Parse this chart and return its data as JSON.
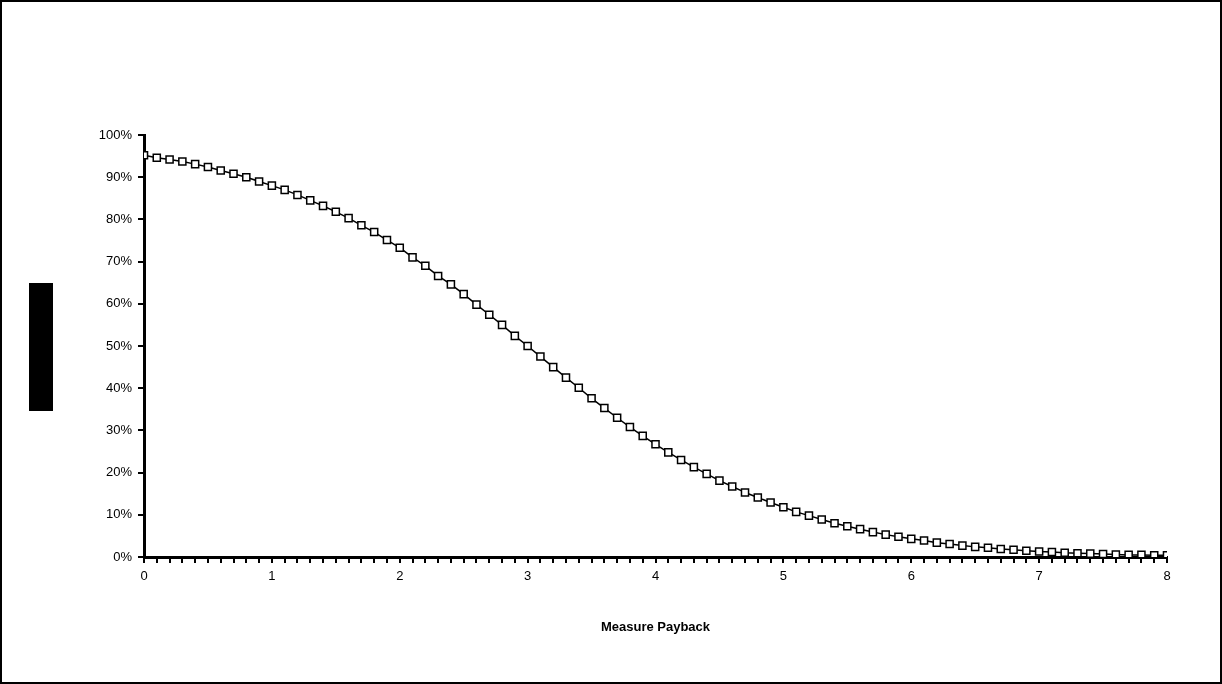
{
  "chart_data": {
    "type": "line",
    "xlabel": "Measure Payback",
    "marker": "square",
    "line_style": "solid",
    "grid": false,
    "legend": false,
    "xlim": [
      0,
      8
    ],
    "xticks": [
      0,
      {
        "value": 0.1,
        "label": null
      },
      {
        "value": 0.2,
        "label": null
      },
      {
        "value": 0.3,
        "label": null
      },
      {
        "value": 0.4,
        "label": null
      },
      {
        "value": 0.5,
        "label": null
      },
      {
        "value": 0.6,
        "label": null
      },
      {
        "value": 0.7,
        "label": null
      },
      {
        "value": 0.8,
        "label": null
      },
      {
        "value": 0.9,
        "label": null
      },
      1,
      {
        "value": 1.1,
        "label": null
      },
      {
        "value": 1.2,
        "label": null
      },
      {
        "value": 1.3,
        "label": null
      },
      {
        "value": 1.4,
        "label": null
      },
      {
        "value": 1.5,
        "label": null
      },
      {
        "value": 1.6,
        "label": null
      },
      {
        "value": 1.7,
        "label": null
      },
      {
        "value": 1.8,
        "label": null
      },
      {
        "value": 1.9,
        "label": null
      },
      2,
      {
        "value": 2.1,
        "label": null
      },
      {
        "value": 2.2,
        "label": null
      },
      {
        "value": 2.3,
        "label": null
      },
      {
        "value": 2.4,
        "label": null
      },
      {
        "value": 2.5,
        "label": null
      },
      {
        "value": 2.6,
        "label": null
      },
      {
        "value": 2.7,
        "label": null
      },
      {
        "value": 2.8,
        "label": null
      },
      {
        "value": 2.9,
        "label": null
      },
      3,
      {
        "value": 3.1,
        "label": null
      },
      {
        "value": 3.2,
        "label": null
      },
      {
        "value": 3.3,
        "label": null
      },
      {
        "value": 3.4,
        "label": null
      },
      {
        "value": 3.5,
        "label": null
      },
      {
        "value": 3.6,
        "label": null
      },
      {
        "value": 3.7,
        "label": null
      },
      {
        "value": 3.8,
        "label": null
      },
      {
        "value": 3.9,
        "label": null
      },
      4,
      {
        "value": 4.1,
        "label": null
      },
      {
        "value": 4.2,
        "label": null
      },
      {
        "value": 4.3,
        "label": null
      },
      {
        "value": 4.4,
        "label": null
      },
      {
        "value": 4.5,
        "label": null
      },
      {
        "value": 4.6,
        "label": null
      },
      {
        "value": 4.7,
        "label": null
      },
      {
        "value": 4.8,
        "label": null
      },
      {
        "value": 4.9,
        "label": null
      },
      5,
      {
        "value": 5.1,
        "label": null
      },
      {
        "value": 5.2,
        "label": null
      },
      {
        "value": 5.3,
        "label": null
      },
      {
        "value": 5.4,
        "label": null
      },
      {
        "value": 5.5,
        "label": null
      },
      {
        "value": 5.6,
        "label": null
      },
      {
        "value": 5.7,
        "label": null
      },
      {
        "value": 5.8,
        "label": null
      },
      {
        "value": 5.9,
        "label": null
      },
      6,
      {
        "value": 6.1,
        "label": null
      },
      {
        "value": 6.2,
        "label": null
      },
      {
        "value": 6.3,
        "label": null
      },
      {
        "value": 6.4,
        "label": null
      },
      {
        "value": 6.5,
        "label": null
      },
      {
        "value": 6.6,
        "label": null
      },
      {
        "value": 6.7,
        "label": null
      },
      {
        "value": 6.8,
        "label": null
      },
      {
        "value": 6.9,
        "label": null
      },
      7,
      {
        "value": 7.1,
        "label": null
      },
      {
        "value": 7.2,
        "label": null
      },
      {
        "value": 7.3,
        "label": null
      },
      {
        "value": 7.4,
        "label": null
      },
      {
        "value": 7.5,
        "label": null
      },
      {
        "value": 7.6,
        "label": null
      },
      {
        "value": 7.7,
        "label": null
      },
      {
        "value": 7.8,
        "label": null
      },
      {
        "value": 7.9,
        "label": null
      },
      8
    ],
    "ylim": [
      0,
      100
    ],
    "yticks": [
      {
        "value": 0,
        "label": "0%"
      },
      {
        "value": 10,
        "label": "10%"
      },
      {
        "value": 20,
        "label": "20%"
      },
      {
        "value": 30,
        "label": "30%"
      },
      {
        "value": 40,
        "label": "40%"
      },
      {
        "value": 50,
        "label": "50%"
      },
      {
        "value": 60,
        "label": "60%"
      },
      {
        "value": 70,
        "label": "70%"
      },
      {
        "value": 80,
        "label": "80%"
      },
      {
        "value": 90,
        "label": "90%"
      },
      {
        "value": 100,
        "label": "100%"
      }
    ],
    "x": [
      0,
      0.1,
      0.2,
      0.3,
      0.4,
      0.5,
      0.6,
      0.7,
      0.8,
      0.9,
      1,
      1.1,
      1.2,
      1.3,
      1.4,
      1.5,
      1.6,
      1.7,
      1.8,
      1.9,
      2,
      2.1,
      2.2,
      2.3,
      2.4,
      2.5,
      2.6,
      2.7,
      2.8,
      2.9,
      3,
      3.1,
      3.2,
      3.3,
      3.4,
      3.5,
      3.6,
      3.7,
      3.8,
      3.9,
      4,
      4.1,
      4.2,
      4.3,
      4.4,
      4.5,
      4.6,
      4.7,
      4.8,
      4.9,
      5,
      5.1,
      5.2,
      5.3,
      5.4,
      5.5,
      5.6,
      5.7,
      5.8,
      5.9,
      6,
      6.1,
      6.2,
      6.3,
      6.4,
      6.5,
      6.6,
      6.7,
      6.8,
      6.9,
      7,
      7.1,
      7.2,
      7.3,
      7.4,
      7.5,
      7.6,
      7.7,
      7.8,
      7.9,
      8
    ],
    "series": [
      {
        "color": "#000000",
        "values": [
          95.2,
          94.6,
          94.2,
          93.7,
          93.1,
          92.4,
          91.6,
          90.8,
          90.0,
          89.0,
          88.0,
          87.0,
          85.8,
          84.5,
          83.2,
          81.8,
          80.3,
          78.6,
          77.0,
          75.1,
          73.3,
          71.0,
          69.0,
          66.6,
          64.6,
          62.3,
          59.8,
          57.4,
          55.0,
          52.4,
          50.0,
          47.5,
          45.0,
          42.5,
          40.1,
          37.6,
          35.3,
          33.0,
          30.8,
          28.7,
          26.7,
          24.8,
          23.0,
          21.3,
          19.7,
          18.1,
          16.7,
          15.3,
          14.1,
          12.9,
          11.8,
          10.7,
          9.8,
          8.9,
          8.0,
          7.3,
          6.6,
          5.9,
          5.3,
          4.8,
          4.3,
          3.9,
          3.4,
          3.1,
          2.7,
          2.4,
          2.2,
          1.9,
          1.7,
          1.5,
          1.3,
          1.2,
          1.0,
          0.9,
          0.8,
          0.7,
          0.6,
          0.5,
          0.5,
          0.4,
          0.4
        ]
      }
    ]
  }
}
